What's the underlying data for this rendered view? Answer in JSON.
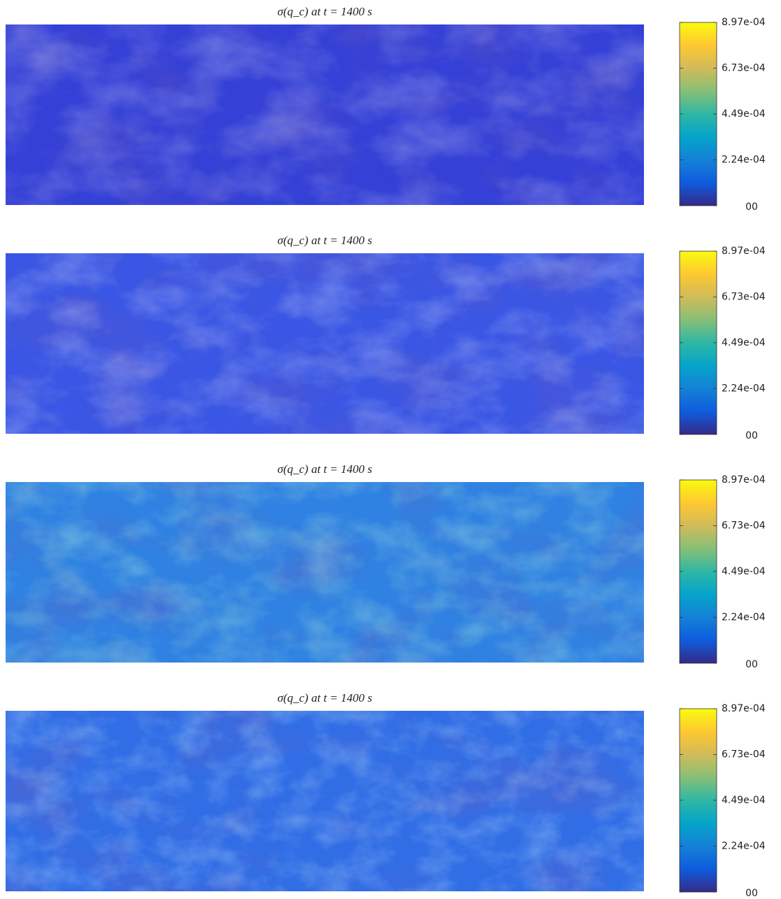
{
  "chart_data": [
    {
      "type": "heatmap",
      "title": "σ(q_c) at t = 1400 s",
      "color": "#3440d6",
      "clim": [
        0,
        0.000897
      ],
      "cticks": [
        {
          "value": 0,
          "label": "00"
        },
        {
          "value": 0.000224,
          "label": "2.24e-04"
        },
        {
          "value": 0.000449,
          "label": "4.49e-04"
        },
        {
          "value": 0.000673,
          "label": "6.73e-04"
        },
        {
          "value": 0.000897,
          "label": "8.97e-04"
        }
      ],
      "colormap": [
        "#352a87",
        "#0f5cdd",
        "#1481d6",
        "#06a4ca",
        "#2eb7a4",
        "#87bf77",
        "#d1bb59",
        "#fec832",
        "#f9fb0e"
      ]
    },
    {
      "type": "heatmap",
      "title": "σ(q_c) at t = 1400 s",
      "color": "#3a56e4",
      "clim": [
        0,
        0.000897
      ],
      "cticks": [
        {
          "value": 0,
          "label": "00"
        },
        {
          "value": 0.000224,
          "label": "2.24e-04"
        },
        {
          "value": 0.000449,
          "label": "4.49e-04"
        },
        {
          "value": 0.000673,
          "label": "6.73e-04"
        },
        {
          "value": 0.000897,
          "label": "8.97e-04"
        }
      ],
      "colormap": [
        "#352a87",
        "#0f5cdd",
        "#1481d6",
        "#06a4ca",
        "#2eb7a4",
        "#87bf77",
        "#d1bb59",
        "#fec832",
        "#f9fb0e"
      ]
    },
    {
      "type": "heatmap",
      "title": "σ(q_c) at t = 1400 s",
      "color": "#2f82e2",
      "clim": [
        0,
        0.000897
      ],
      "cticks": [
        {
          "value": 0,
          "label": "00"
        },
        {
          "value": 0.000224,
          "label": "2.24e-04"
        },
        {
          "value": 0.000449,
          "label": "4.49e-04"
        },
        {
          "value": 0.000673,
          "label": "6.73e-04"
        },
        {
          "value": 0.000897,
          "label": "8.97e-04"
        }
      ],
      "colormap": [
        "#352a87",
        "#0f5cdd",
        "#1481d6",
        "#06a4ca",
        "#2eb7a4",
        "#87bf77",
        "#d1bb59",
        "#fec832",
        "#f9fb0e"
      ]
    },
    {
      "type": "heatmap",
      "title": "σ(q_c) at t = 1400 s",
      "color": "#316ee6",
      "clim": [
        0,
        0.000897
      ],
      "cticks": [
        {
          "value": 0,
          "label": "00"
        },
        {
          "value": 0.000224,
          "label": "2.24e-04"
        },
        {
          "value": 0.000449,
          "label": "4.49e-04"
        },
        {
          "value": 0.000673,
          "label": "6.73e-04"
        },
        {
          "value": 0.000897,
          "label": "8.97e-04"
        }
      ],
      "colormap": [
        "#352a87",
        "#0f5cdd",
        "#1481d6",
        "#06a4ca",
        "#2eb7a4",
        "#87bf77",
        "#d1bb59",
        "#fec832",
        "#f9fb0e"
      ]
    }
  ]
}
